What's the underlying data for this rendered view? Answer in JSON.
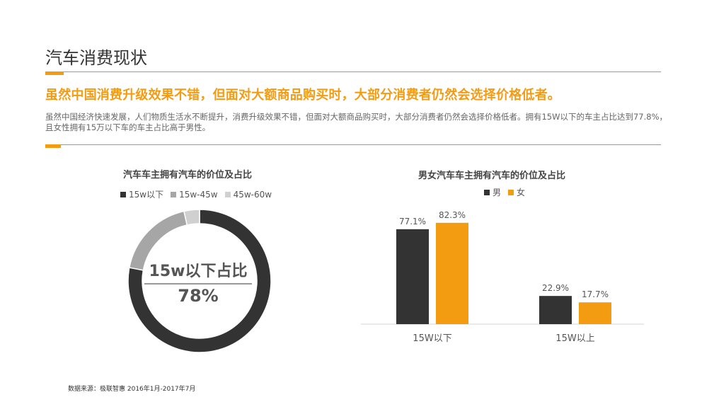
{
  "header": {
    "title": "汽车消费现状",
    "headline": "虽然中国消费升级效果不错，但面对大额商品购买时，大部分消费者仍然会选择价格低者。",
    "body": "虽然中国经济快速发展，人们物质生活水不断提升，消费升级效果不错，但面对大额商品购买时，大部分消费者仍然会选择价格低者。拥有15W以下的车主占比达到77.8%，且女性拥有15万以下车的车主占比高于男性。"
  },
  "footer": {
    "source": "数据来源：极联智惠  2016年1月-2017年7月"
  },
  "colors": {
    "accent": "#f39c12",
    "dark": "#333333",
    "mid_gray": "#a6a6a6",
    "light_gray": "#d0d0d0",
    "rule": "#9a9a9a"
  },
  "chart_data": [
    {
      "type": "pie",
      "variant": "donut",
      "title": "汽车车主拥有汽车的价位及占比",
      "legend_position": "top",
      "series": [
        {
          "name": "15w以下",
          "value": 78,
          "color": "#333333"
        },
        {
          "name": "15w-45w",
          "value": 18.5,
          "color": "#a6a6a6"
        },
        {
          "name": "45w-60w",
          "value": 3.5,
          "color": "#d0d0d0"
        }
      ],
      "center_label": "15w以下占比",
      "center_value": "78%"
    },
    {
      "type": "bar",
      "title": "男女汽车车主拥有汽车的价位及占比",
      "legend_position": "top",
      "categories": [
        "15W以下",
        "15W以上"
      ],
      "series": [
        {
          "name": "男",
          "values": [
            77.1,
            22.9
          ],
          "labels": [
            "77.1%",
            "22.9%"
          ],
          "color": "#333333"
        },
        {
          "name": "女",
          "values": [
            82.3,
            17.7
          ],
          "labels": [
            "82.3%",
            "17.7%"
          ],
          "color": "#f39c12"
        }
      ],
      "ylim": [
        0,
        100
      ],
      "grid": false
    }
  ]
}
